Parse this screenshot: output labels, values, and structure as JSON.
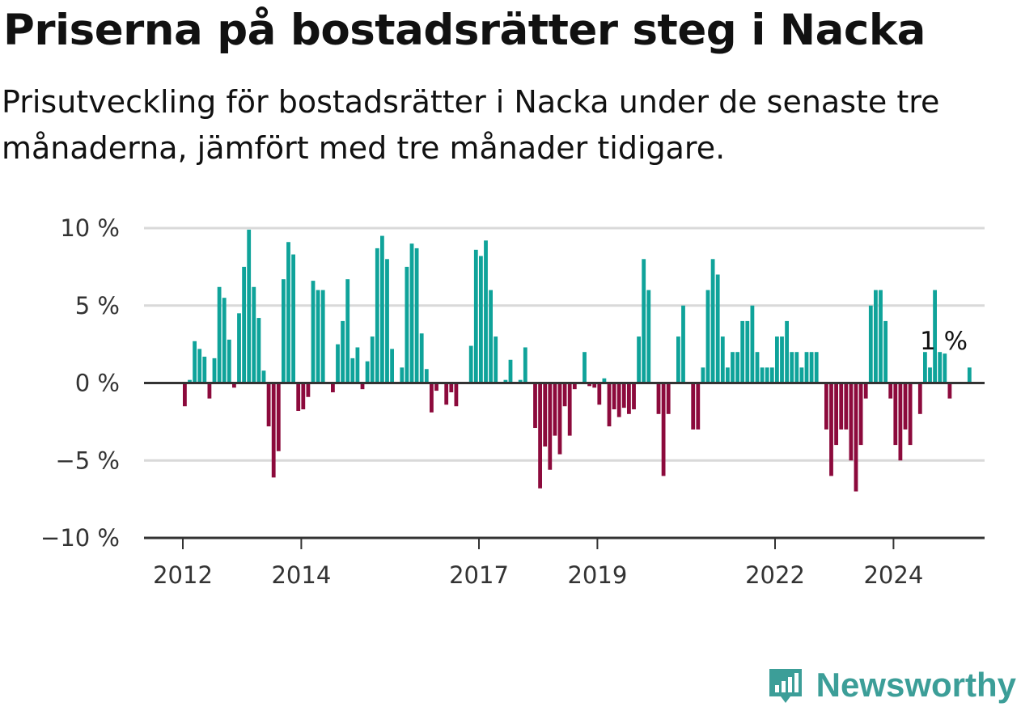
{
  "title": "Priserna på bostadsrätter steg i Nacka",
  "subtitle": "Prisutveckling för bostadsrätter i Nacka under de senaste tre månaderna, jämfört med tre månader tidigare.",
  "brand": {
    "name": "Newsworthy",
    "icon": "bar-chart-icon"
  },
  "colors": {
    "positive": "#0fa39a",
    "negative": "#8c0a3c",
    "grid": "#d9d9d9",
    "axis": "#333333",
    "brand": "#3c9e98"
  },
  "chart_data": {
    "type": "bar",
    "x_start": "2012-01",
    "x_end": "2025-02",
    "ylim": [
      -10,
      10
    ],
    "yticks": [
      10,
      5,
      0,
      -5,
      -10
    ],
    "ytick_labels": [
      "10 %",
      "5 %",
      "0 %",
      "−5 %",
      "−10 %"
    ],
    "xticks": [
      2012,
      2014,
      2017,
      2019,
      2022,
      2024
    ],
    "xtick_labels": [
      "2012",
      "2014",
      "2017",
      "2019",
      "2022",
      "2024"
    ],
    "end_label": "1 %",
    "values": [
      -1.5,
      0.2,
      2.7,
      2.2,
      1.7,
      -1.0,
      1.6,
      6.2,
      5.5,
      2.8,
      -0.3,
      4.5,
      7.5,
      9.9,
      6.2,
      4.2,
      0.8,
      -2.8,
      -6.1,
      -4.4,
      6.7,
      9.1,
      8.3,
      -1.8,
      -1.7,
      -0.9,
      6.6,
      6.0,
      6.0,
      0.0,
      -0.6,
      2.5,
      4.0,
      6.7,
      1.6,
      2.3,
      -0.4,
      1.4,
      3.0,
      8.7,
      9.5,
      8.0,
      2.2,
      0.0,
      1.0,
      7.5,
      9.0,
      8.7,
      3.2,
      0.9,
      -1.9,
      -0.5,
      0.0,
      -1.4,
      -0.6,
      -1.5,
      0.0,
      0.0,
      2.4,
      8.6,
      8.2,
      9.2,
      6.0,
      3.0,
      0.0,
      0.2,
      1.5,
      0.0,
      0.2,
      2.3,
      0.0,
      -2.9,
      -6.8,
      -4.1,
      -5.6,
      -3.4,
      -4.6,
      -1.5,
      -3.4,
      -0.4,
      0.0,
      2.0,
      -0.2,
      -0.3,
      -1.4,
      0.3,
      -2.8,
      -1.7,
      -2.2,
      -1.6,
      -2.0,
      -1.7,
      3.0,
      8.0,
      6.0,
      0.0,
      -2.0,
      -6.0,
      -2.0,
      0.0,
      3.0,
      5.0,
      0.0,
      -3.0,
      -3.0,
      1.0,
      6.0,
      8.0,
      7.0,
      3.0,
      1.0,
      2.0,
      2.0,
      4.0,
      4.0,
      5.0,
      2.0,
      1.0,
      1.0,
      1.0,
      3.0,
      3.0,
      4.0,
      2.0,
      2.0,
      1.0,
      2.0,
      2.0,
      2.0,
      0.0,
      -3.0,
      -6.0,
      -4.0,
      -3.0,
      -3.0,
      -5.0,
      -7.0,
      -4.0,
      -1.0,
      5.0,
      6.0,
      6.0,
      4.0,
      -1.0,
      -4.0,
      -5.0,
      -3.0,
      -4.0,
      0.0,
      -2.0,
      2.0,
      1.0,
      6.0,
      2.0,
      1.9,
      -1.0,
      0.0,
      0.0,
      0.0,
      1.0
    ]
  }
}
